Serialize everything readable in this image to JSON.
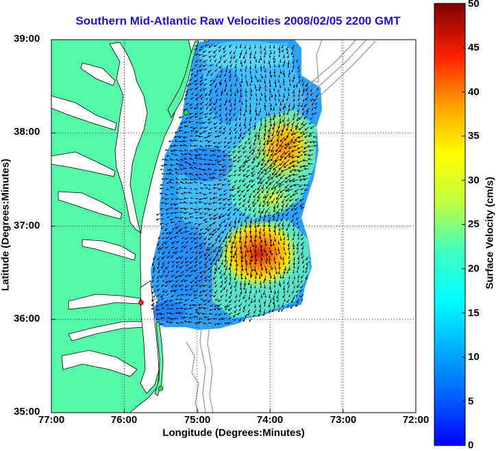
{
  "title": "Southern Mid-Atlantic Raw Velocities 2008/02/05 2200 GMT",
  "x_axis": {
    "label": "Longitude (Degrees:Minutes)",
    "range": [
      -77,
      -72
    ],
    "ticks": [
      {
        "value": -77,
        "label": "77:00"
      },
      {
        "value": -76,
        "label": "76:00"
      },
      {
        "value": -75,
        "label": "75:00"
      },
      {
        "value": -74,
        "label": "74:00"
      },
      {
        "value": -73,
        "label": "73:00"
      },
      {
        "value": -72,
        "label": "72:00"
      }
    ]
  },
  "y_axis": {
    "label": "Latitude (Degrees:Minutes)",
    "range": [
      35,
      39
    ],
    "ticks": [
      {
        "value": 39,
        "label": "39:00"
      },
      {
        "value": 38,
        "label": "38:00"
      },
      {
        "value": 37,
        "label": "37:00"
      },
      {
        "value": 36,
        "label": "36:00"
      },
      {
        "value": 35,
        "label": "35:00"
      }
    ]
  },
  "grid": "dotted",
  "colorbar": {
    "label": "Surface Velocity (cm/s)",
    "range": [
      0,
      50
    ],
    "placement": "right",
    "colormap": "jet",
    "ticks": [
      "50",
      "45",
      "40",
      "35",
      "30",
      "25",
      "20",
      "15",
      "10",
      "5",
      "0"
    ]
  },
  "colors": {
    "land": "#55f7a8",
    "water": "#ffffff",
    "bathymetry": "#9a9a9a",
    "title": "#1a13d6",
    "station_active": "#33dd33",
    "station_offline": "#ff2020"
  },
  "stations": [
    {
      "lon": -74.87,
      "lat": 39.0,
      "status": "active"
    },
    {
      "lon": -75.15,
      "lat": 38.22,
      "status": "active"
    },
    {
      "lon": -75.77,
      "lat": 36.18,
      "status": "offline"
    },
    {
      "lon": -75.5,
      "lat": 35.26,
      "status": "active"
    }
  ],
  "velocity_peaks": [
    {
      "lon": -74.45,
      "lat": 36.8,
      "speed": 45
    },
    {
      "lon": -73.8,
      "lat": 37.83,
      "speed": 35
    },
    {
      "lon": -73.9,
      "lat": 37.4,
      "speed": 26
    }
  ]
}
